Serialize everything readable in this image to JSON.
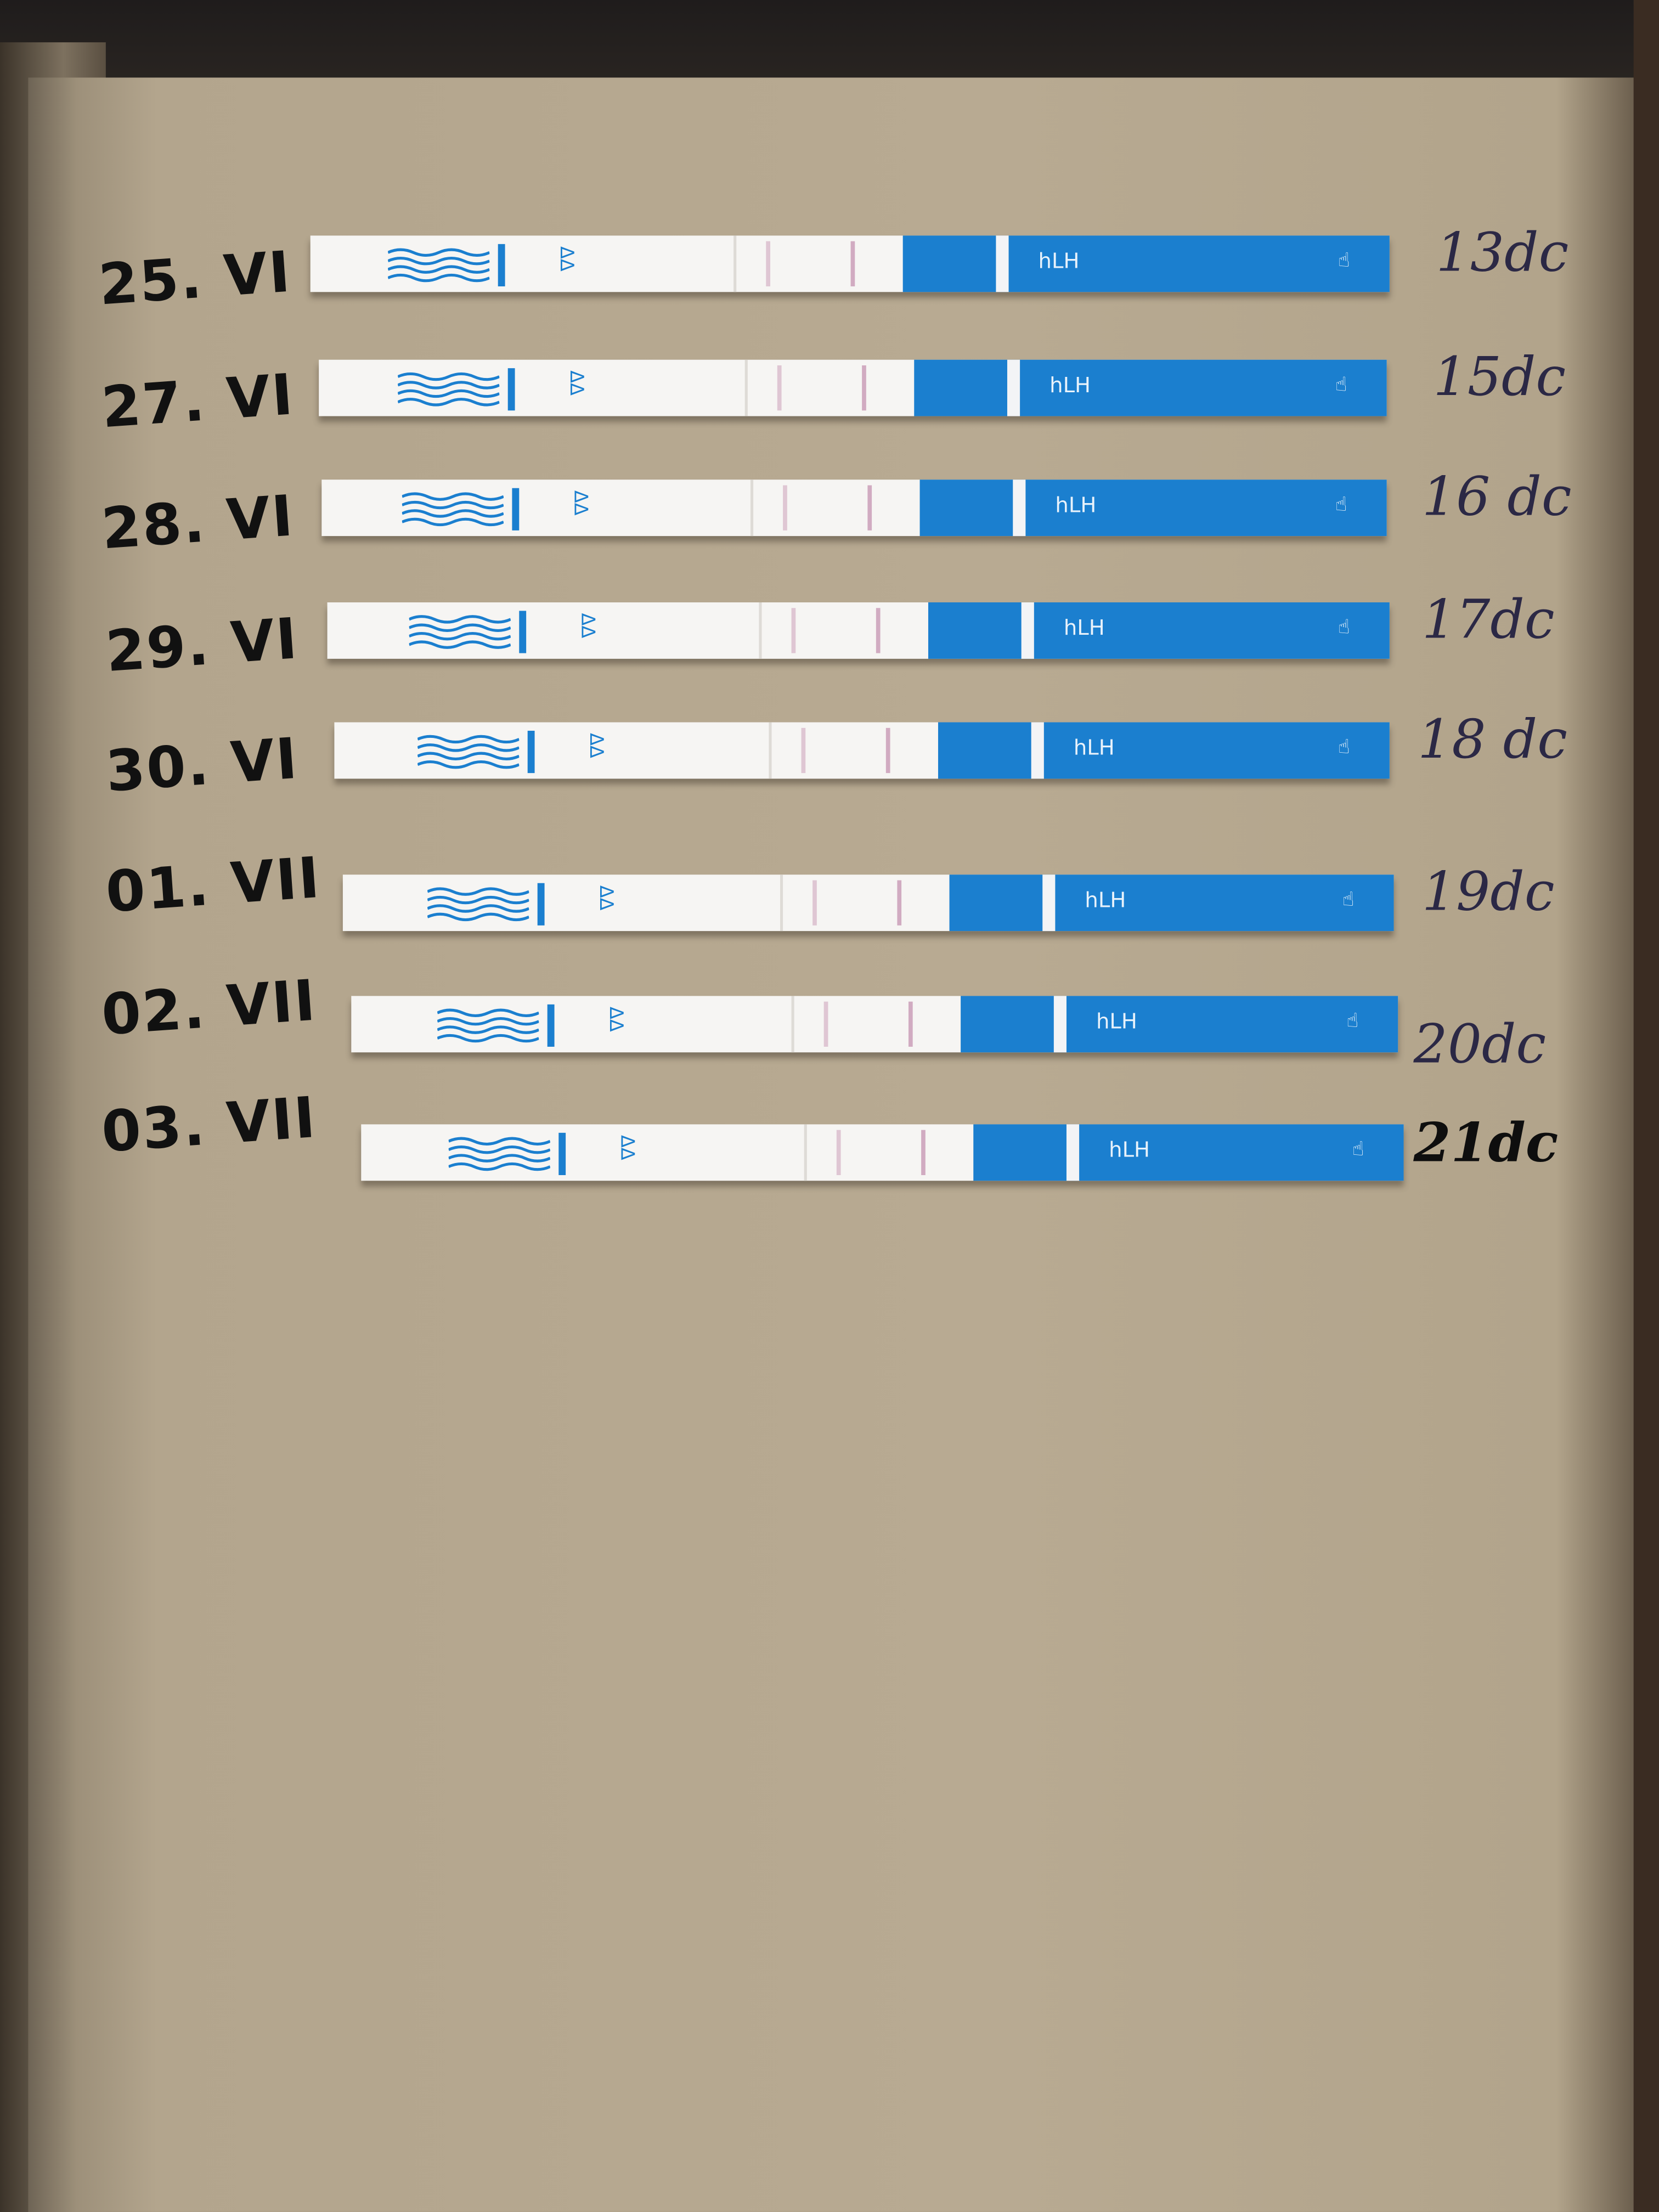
{
  "strip_label": "hLH",
  "colors": {
    "strip_blue": "#1b7fcf",
    "paper": "#b8aa92",
    "test_line": "#c898b4"
  },
  "rows": [
    {
      "date": "25. VI",
      "cycle_day": "13dc"
    },
    {
      "date": "27. VI",
      "cycle_day": "15dc"
    },
    {
      "date": "28. VI",
      "cycle_day": "16 dc"
    },
    {
      "date": "29. VI",
      "cycle_day": "17dc"
    },
    {
      "date": "30. VI",
      "cycle_day": "18 dc"
    },
    {
      "date": "01. VII",
      "cycle_day": "19dc"
    },
    {
      "date": "02. VII",
      "cycle_day": "20dc"
    },
    {
      "date": "03. VII",
      "cycle_day": "21dc"
    }
  ]
}
